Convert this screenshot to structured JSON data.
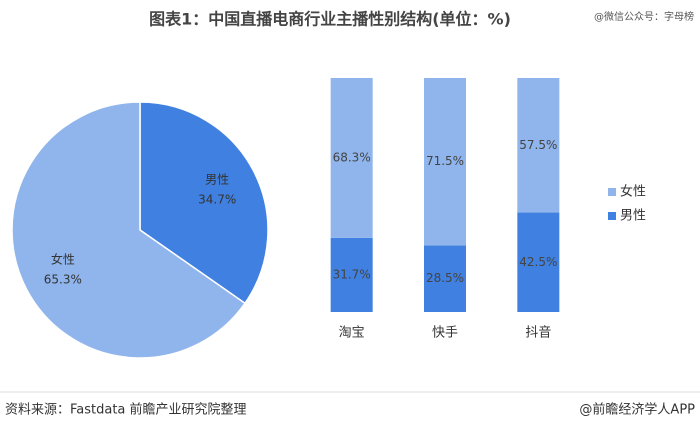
{
  "title": "图表1：中国直播电商行业主播性别结构(单位：%)",
  "watermark": "@微信公众号：字母榜",
  "source": "资料来源：Fastdata 前瞻产业研究院整理",
  "credit": "@前瞻经济学人APP",
  "chart_data": [
    {
      "type": "pie",
      "categories": [
        "男性",
        "女性"
      ],
      "values": [
        34.7,
        65.3
      ],
      "value_labels": [
        "34.7%",
        "65.3%"
      ],
      "colors": [
        "#3f80e0",
        "#8fb5ec"
      ]
    },
    {
      "type": "bar",
      "stacked": true,
      "categories": [
        "淘宝",
        "快手",
        "抖音"
      ],
      "series": [
        {
          "name": "男性",
          "color": "#3f80e0",
          "values": [
            31.7,
            28.5,
            42.5
          ],
          "value_labels": [
            "31.7%",
            "28.5%",
            "42.5%"
          ]
        },
        {
          "name": "女性",
          "color": "#8fb5ec",
          "values": [
            68.3,
            71.5,
            57.5
          ],
          "value_labels": [
            "68.3%",
            "71.5%",
            "57.5%"
          ]
        }
      ],
      "legend": "right"
    }
  ]
}
